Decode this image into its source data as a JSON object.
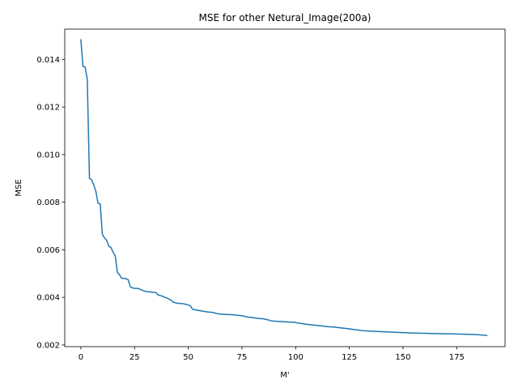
{
  "chart_data": {
    "type": "line",
    "title": "MSE for other Netural_Image(200a)",
    "xlabel": "M'",
    "ylabel": "MSE",
    "xlim": [
      -7.5,
      197.5
    ],
    "ylim": [
      0.00193,
      0.01527
    ],
    "xticks": [
      0,
      25,
      50,
      75,
      100,
      125,
      150,
      175
    ],
    "xtick_labels": [
      "0",
      "25",
      "50",
      "75",
      "100",
      "125",
      "150",
      "175"
    ],
    "yticks": [
      0.002,
      0.004,
      0.006,
      0.008,
      0.01,
      0.012,
      0.014
    ],
    "ytick_labels": [
      "0.002",
      "0.004",
      "0.006",
      "0.008",
      "0.010",
      "0.012",
      "0.014"
    ],
    "grid": false,
    "series": [
      {
        "color": "#1f77b4",
        "x": [
          0,
          1,
          2,
          3,
          4,
          5,
          6,
          7,
          8,
          9,
          10,
          11,
          12,
          13,
          14,
          15,
          16,
          17,
          18,
          19,
          20,
          21,
          22,
          23,
          24,
          25,
          27,
          28,
          30,
          32,
          34,
          35,
          36,
          38,
          39,
          40,
          42,
          43,
          45,
          47,
          48,
          50,
          51,
          52,
          55,
          58,
          60,
          62,
          63,
          65,
          68,
          70,
          73,
          75,
          76,
          77,
          80,
          82,
          85,
          87,
          88,
          90,
          92,
          94,
          96,
          98,
          100,
          101,
          103,
          105,
          108,
          110,
          112,
          113,
          115,
          118,
          120,
          122,
          125,
          127,
          129,
          131,
          135,
          140,
          145,
          150,
          155,
          160,
          165,
          170,
          175,
          180,
          185,
          189
        ],
        "y": [
          0.01482,
          0.0137,
          0.01368,
          0.01315,
          0.009,
          0.00895,
          0.00872,
          0.00845,
          0.00795,
          0.00793,
          0.00665,
          0.0065,
          0.0064,
          0.00615,
          0.0061,
          0.0059,
          0.00575,
          0.00505,
          0.00495,
          0.0048,
          0.0048,
          0.00478,
          0.00475,
          0.00445,
          0.0044,
          0.00438,
          0.00437,
          0.00432,
          0.00425,
          0.00423,
          0.00421,
          0.0042,
          0.0041,
          0.00405,
          0.004,
          0.00398,
          0.00388,
          0.0038,
          0.00375,
          0.00374,
          0.00373,
          0.00368,
          0.00365,
          0.0035,
          0.00345,
          0.0034,
          0.00338,
          0.00336,
          0.00332,
          0.0033,
          0.00328,
          0.00328,
          0.00325,
          0.00323,
          0.00321,
          0.00318,
          0.00315,
          0.00312,
          0.0031,
          0.00306,
          0.00303,
          0.003,
          0.00299,
          0.00298,
          0.00297,
          0.00296,
          0.00295,
          0.00292,
          0.0029,
          0.00287,
          0.00284,
          0.00282,
          0.0028,
          0.00279,
          0.00277,
          0.00275,
          0.00273,
          0.00271,
          0.00268,
          0.00265,
          0.00263,
          0.0026,
          0.00258,
          0.00256,
          0.00254,
          0.00252,
          0.0025,
          0.00249,
          0.00248,
          0.00247,
          0.00246,
          0.00245,
          0.00243,
          0.0024
        ]
      }
    ]
  }
}
